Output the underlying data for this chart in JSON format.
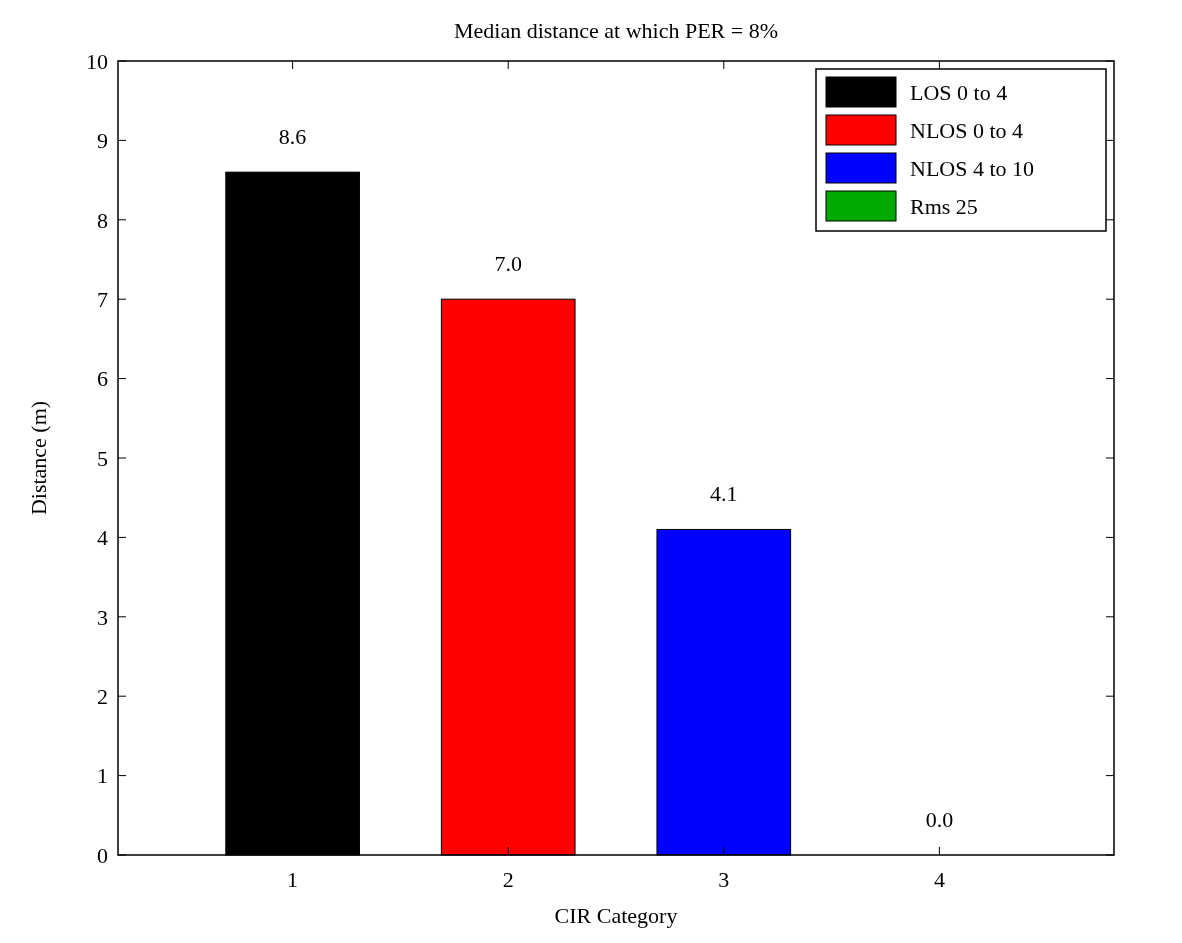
{
  "chart_data": {
    "type": "bar",
    "title": "Median distance at which PER = 8%",
    "xlabel": "CIR Category",
    "ylabel": "Distance (m)",
    "categories": [
      "1",
      "2",
      "3",
      "4"
    ],
    "series": [
      {
        "name": "LOS 0 to 4",
        "color": "#000000",
        "values": [
          8.6,
          null,
          null,
          null
        ],
        "value_labels": [
          "8.6",
          null,
          null,
          null
        ]
      },
      {
        "name": "NLOS 0 to 4",
        "color": "#ff0000",
        "values": [
          null,
          7.0,
          null,
          null
        ],
        "value_labels": [
          null,
          "7.0",
          null,
          null
        ]
      },
      {
        "name": "NLOS 4 to 10",
        "color": "#0000ff",
        "values": [
          null,
          null,
          4.1,
          null
        ],
        "value_labels": [
          null,
          null,
          "4.1",
          null
        ]
      },
      {
        "name": "Rms 25",
        "color": "#00aa00",
        "values": [
          null,
          null,
          null,
          0.0
        ],
        "value_labels": [
          null,
          null,
          null,
          "0.0"
        ]
      }
    ],
    "ylim": [
      0,
      10
    ],
    "yticks": [
      0,
      1,
      2,
      3,
      4,
      5,
      6,
      7,
      8,
      9,
      10
    ],
    "legend": "top right"
  }
}
